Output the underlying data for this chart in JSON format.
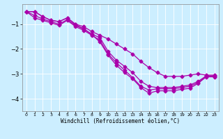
{
  "background_color": "#cceeff",
  "line_color": "#aa00aa",
  "xlabel": "Windchill (Refroidissement éolien,°C)",
  "xlim": [
    -0.5,
    23.5
  ],
  "ylim": [
    -4.5,
    -0.2
  ],
  "yticks": [
    -4,
    -3,
    -2,
    -1
  ],
  "xticks": [
    0,
    1,
    2,
    3,
    4,
    5,
    6,
    7,
    8,
    9,
    10,
    11,
    12,
    13,
    14,
    15,
    16,
    17,
    18,
    19,
    20,
    21,
    22,
    23
  ],
  "line1_x": [
    0,
    1,
    2,
    3,
    4,
    5,
    6,
    7,
    8,
    9,
    10,
    11,
    12,
    13,
    14,
    15,
    16,
    17,
    18,
    19,
    20,
    21,
    22,
    23
  ],
  "line1_y": [
    -0.5,
    -0.5,
    -0.7,
    -0.85,
    -0.9,
    -0.75,
    -1.0,
    -1.1,
    -1.3,
    -1.45,
    -1.6,
    -1.8,
    -2.0,
    -2.2,
    -2.5,
    -2.75,
    -2.95,
    -3.1,
    -3.1,
    -3.1,
    -3.05,
    -3.0,
    -3.05,
    -3.05
  ],
  "line2_x": [
    0,
    1,
    2,
    3,
    4,
    5,
    6,
    7,
    8,
    9,
    10,
    11,
    12,
    13,
    14,
    15,
    16,
    17,
    18,
    19,
    20,
    21,
    22,
    23
  ],
  "line2_y": [
    -0.5,
    -0.65,
    -0.8,
    -0.9,
    -1.0,
    -0.82,
    -1.05,
    -1.2,
    -1.4,
    -1.55,
    -2.1,
    -2.45,
    -2.7,
    -2.95,
    -3.3,
    -3.5,
    -3.55,
    -3.55,
    -3.55,
    -3.5,
    -3.45,
    -3.3,
    -3.08,
    -3.08
  ],
  "line3_x": [
    0,
    1,
    2,
    3,
    4,
    5,
    6,
    7,
    8,
    9,
    10,
    11,
    12,
    13,
    14,
    15,
    16,
    17,
    18,
    19,
    20,
    21,
    22,
    23
  ],
  "line3_y": [
    -0.5,
    -0.75,
    -0.85,
    -0.95,
    -1.05,
    -0.85,
    -1.1,
    -1.25,
    -1.45,
    -1.65,
    -2.2,
    -2.55,
    -2.85,
    -3.15,
    -3.5,
    -3.65,
    -3.6,
    -3.6,
    -3.6,
    -3.55,
    -3.5,
    -3.35,
    -3.1,
    -3.1
  ],
  "line4_x": [
    0,
    1,
    2,
    3,
    4,
    5,
    6,
    7,
    8,
    9,
    10,
    11,
    12,
    13,
    14,
    15,
    16,
    17,
    18,
    19,
    20,
    21,
    22,
    23
  ],
  "line4_y": [
    -0.5,
    -0.5,
    -0.7,
    -0.85,
    -0.9,
    -0.75,
    -1.02,
    -1.18,
    -1.42,
    -1.72,
    -2.25,
    -2.65,
    -2.95,
    -3.2,
    -3.55,
    -3.78,
    -3.68,
    -3.68,
    -3.68,
    -3.62,
    -3.58,
    -3.38,
    -3.12,
    -3.12
  ]
}
